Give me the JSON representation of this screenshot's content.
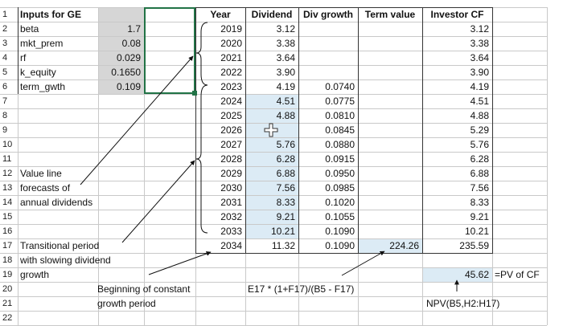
{
  "row_numbers": [
    "1",
    "2",
    "3",
    "4",
    "5",
    "6",
    "7",
    "8",
    "9",
    "10",
    "11",
    "12",
    "13",
    "14",
    "15",
    "16",
    "17",
    "18",
    "19",
    "20",
    "21",
    "22"
  ],
  "inputs": {
    "header": "Inputs for GE",
    "rows": [
      {
        "label": "beta",
        "value": "1.7"
      },
      {
        "label": "mkt_prem",
        "value": "0.08"
      },
      {
        "label": "rf",
        "value": "0.029"
      },
      {
        "label": "k_equity",
        "value": "0.1650"
      },
      {
        "label": "term_gwth",
        "value": "0.109"
      }
    ]
  },
  "table": {
    "headers": {
      "year": "Year",
      "dividend": "Dividend",
      "div_growth": "Div growth",
      "term_value": "Term value",
      "investor_cf": "Investor CF"
    },
    "rows": [
      {
        "year": "2019",
        "dividend": "3.12",
        "growth": "",
        "term": "",
        "cf": "3.12"
      },
      {
        "year": "2020",
        "dividend": "3.38",
        "growth": "",
        "term": "",
        "cf": "3.38"
      },
      {
        "year": "2021",
        "dividend": "3.64",
        "growth": "",
        "term": "",
        "cf": "3.64"
      },
      {
        "year": "2022",
        "dividend": "3.90",
        "growth": "",
        "term": "",
        "cf": "3.90"
      },
      {
        "year": "2023",
        "dividend": "4.19",
        "growth": "0.0740",
        "term": "",
        "cf": "4.19"
      },
      {
        "year": "2024",
        "dividend": "4.51",
        "growth": "0.0775",
        "term": "",
        "cf": "4.51"
      },
      {
        "year": "2025",
        "dividend": "4.88",
        "growth": "0.0810",
        "term": "",
        "cf": "4.88"
      },
      {
        "year": "2026",
        "dividend": "",
        "growth": "0.0845",
        "term": "",
        "cf": "5.29"
      },
      {
        "year": "2027",
        "dividend": "5.76",
        "growth": "0.0880",
        "term": "",
        "cf": "5.76"
      },
      {
        "year": "2028",
        "dividend": "6.28",
        "growth": "0.0915",
        "term": "",
        "cf": "6.28"
      },
      {
        "year": "2029",
        "dividend": "6.88",
        "growth": "0.0950",
        "term": "",
        "cf": "6.88"
      },
      {
        "year": "2030",
        "dividend": "7.56",
        "growth": "0.0985",
        "term": "",
        "cf": "7.56"
      },
      {
        "year": "2031",
        "dividend": "8.33",
        "growth": "0.1020",
        "term": "",
        "cf": "8.33"
      },
      {
        "year": "2032",
        "dividend": "9.21",
        "growth": "0.1055",
        "term": "",
        "cf": "9.21"
      },
      {
        "year": "2033",
        "dividend": "10.21",
        "growth": "0.1090",
        "term": "",
        "cf": "10.21"
      },
      {
        "year": "2034",
        "dividend": "11.32",
        "growth": "0.1090",
        "term": "224.26",
        "cf": "235.59"
      }
    ]
  },
  "annotations": {
    "value_line": [
      "Value line",
      "forecasts of",
      "annual dividends"
    ],
    "transitional": [
      "Transitional period",
      "with slowing dividend",
      "growth"
    ],
    "beginning": [
      "Beginning of constant",
      "growth period"
    ],
    "term_formula": "E17 * (1+F17)/(B5 - F17)",
    "pv_value": "45.62",
    "pv_label": "=PV of CF",
    "npv_formula": "NPV(B5,H2:H17)"
  },
  "colors": {
    "grey_fill": "#d6d6d6",
    "blue_fill": "#dcebf5",
    "selection": "#217346"
  }
}
